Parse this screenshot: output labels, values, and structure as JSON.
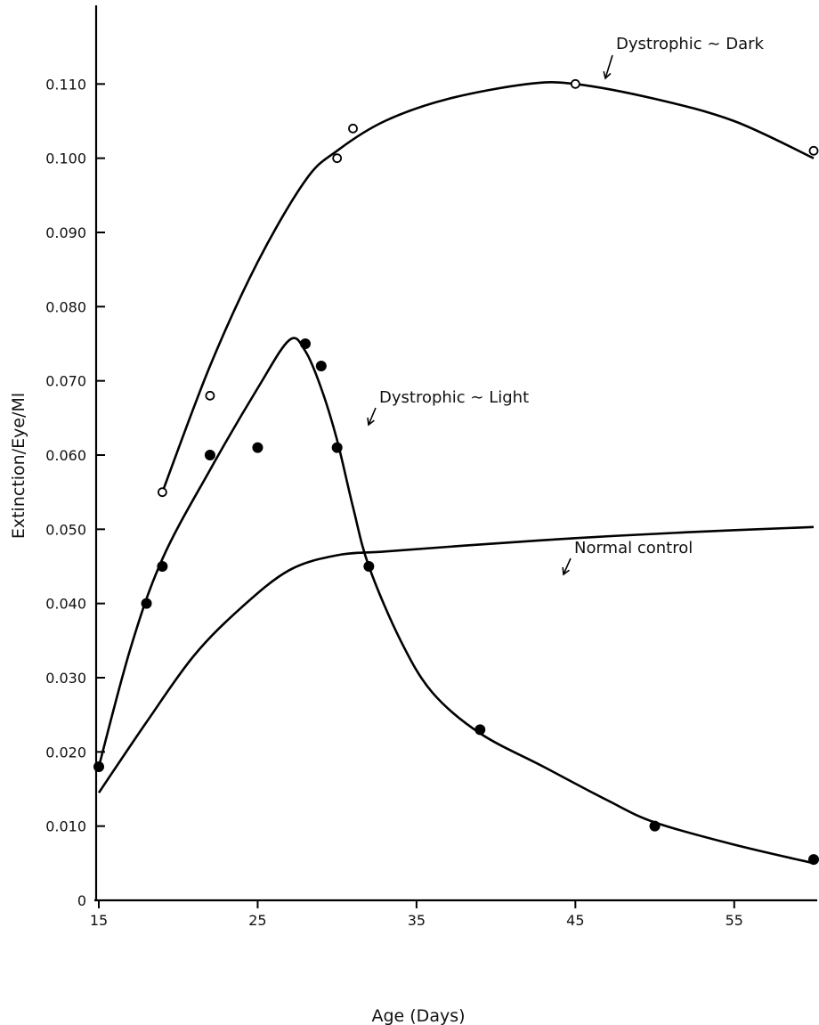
{
  "chart_data": {
    "type": "scatter",
    "xlabel": "Age (Days)",
    "ylabel": "Extinction/Eye/Ml",
    "xlim": [
      15,
      60
    ],
    "ylim": [
      0,
      0.12
    ],
    "x_ticks": [
      "15",
      "25",
      "35",
      "45",
      "55"
    ],
    "y_ticks": [
      "0",
      "0.010",
      "0.020",
      "0.030",
      "0.040",
      "0.050",
      "0.060",
      "0.070",
      "0.080",
      "0.090",
      "0.100",
      "0.110"
    ],
    "grid": false,
    "annotations": [
      {
        "text": "Dystrophic ∼ Dark",
        "series": "dark"
      },
      {
        "text": "Dystrophic ∼ Light",
        "series": "light"
      },
      {
        "text": "Normal control",
        "series": "normal"
      }
    ],
    "series": [
      {
        "id": "dark",
        "marker": "open-circle",
        "points": [
          [
            19,
            0.055
          ],
          [
            22,
            0.068
          ],
          [
            30,
            0.1
          ],
          [
            31,
            0.104
          ],
          [
            45,
            0.11
          ],
          [
            60,
            0.101
          ]
        ],
        "curve": [
          [
            19,
            0.055
          ],
          [
            22,
            0.072
          ],
          [
            25,
            0.086
          ],
          [
            28,
            0.097
          ],
          [
            30,
            0.101
          ],
          [
            33,
            0.105
          ],
          [
            37,
            0.108
          ],
          [
            42,
            0.11
          ],
          [
            45,
            0.11
          ],
          [
            50,
            0.108
          ],
          [
            55,
            0.105
          ],
          [
            60,
            0.1
          ]
        ]
      },
      {
        "id": "light",
        "marker": "filled-circle",
        "points": [
          [
            15,
            0.018
          ],
          [
            18,
            0.04
          ],
          [
            19,
            0.045
          ],
          [
            22,
            0.06
          ],
          [
            25,
            0.061
          ],
          [
            28,
            0.075
          ],
          [
            29,
            0.072
          ],
          [
            30,
            0.061
          ],
          [
            32,
            0.045
          ],
          [
            39,
            0.023
          ],
          [
            50,
            0.01
          ],
          [
            60,
            0.0055
          ]
        ],
        "curve": [
          [
            15,
            0.018
          ],
          [
            17,
            0.034
          ],
          [
            19,
            0.046
          ],
          [
            22,
            0.058
          ],
          [
            25,
            0.069
          ],
          [
            27,
            0.0755
          ],
          [
            28,
            0.074
          ],
          [
            29,
            0.069
          ],
          [
            30,
            0.062
          ],
          [
            31,
            0.053
          ],
          [
            32,
            0.045
          ],
          [
            34,
            0.035
          ],
          [
            36,
            0.028
          ],
          [
            39,
            0.0225
          ],
          [
            43,
            0.018
          ],
          [
            47,
            0.0135
          ],
          [
            50,
            0.0105
          ],
          [
            55,
            0.0075
          ],
          [
            60,
            0.005
          ]
        ]
      },
      {
        "id": "normal",
        "marker": "none",
        "points": [],
        "curve": [
          [
            15,
            0.0145
          ],
          [
            18,
            0.024
          ],
          [
            21,
            0.033
          ],
          [
            24,
            0.0395
          ],
          [
            27,
            0.0445
          ],
          [
            30,
            0.0465
          ],
          [
            33,
            0.047
          ],
          [
            38,
            0.0478
          ],
          [
            45,
            0.0488
          ],
          [
            52,
            0.0496
          ],
          [
            60,
            0.0503
          ]
        ]
      }
    ]
  }
}
